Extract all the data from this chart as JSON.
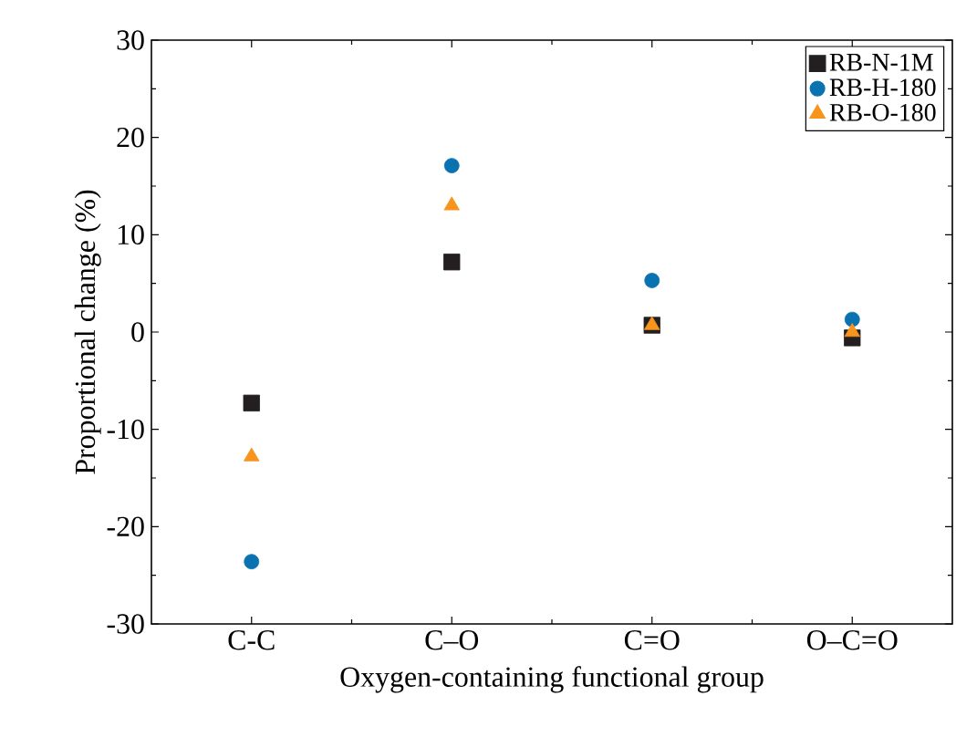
{
  "chart_data": {
    "type": "scatter",
    "xlabel": "Oxygen-containing functional group",
    "ylabel": "Proportional change (%)",
    "categories": [
      "C-C",
      "C–O",
      "C=O",
      "O–C=O"
    ],
    "ylim": [
      -30,
      30
    ],
    "yticks": [
      -30,
      -20,
      -10,
      0,
      10,
      20,
      30
    ],
    "grid": false,
    "legend": "top right",
    "series": [
      {
        "name": "RB-N-1M",
        "color": "#231f20",
        "marker": "square",
        "values": [
          -7.3,
          7.2,
          0.7,
          -0.6
        ]
      },
      {
        "name": "RB-H-180",
        "color": "#0a72b0",
        "marker": "circle",
        "values": [
          -23.6,
          17.1,
          5.3,
          1.3
        ]
      },
      {
        "name": "RB-O-180",
        "color": "#f7941d",
        "marker": "triangle",
        "values": [
          -12.8,
          13.0,
          0.7,
          0.0
        ]
      }
    ]
  }
}
